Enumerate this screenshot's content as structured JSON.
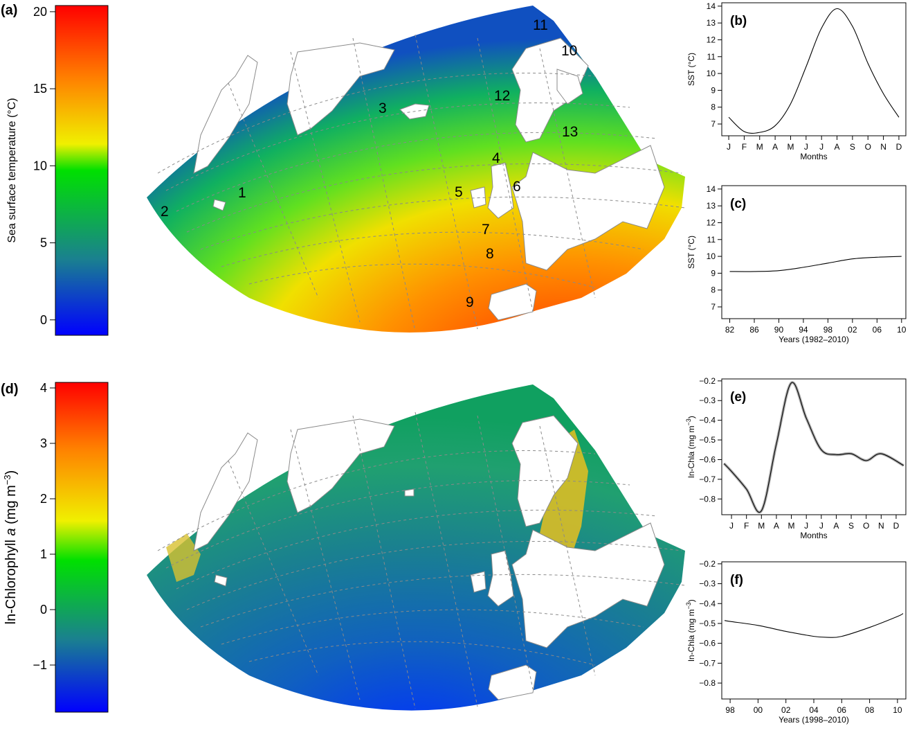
{
  "panels": {
    "a": "(a)",
    "b": "(b)",
    "c": "(c)",
    "d": "(d)",
    "e": "(e)",
    "f": "(f)"
  },
  "colors": {
    "ramp": [
      "#0000ff",
      "#1a80a0",
      "#00e000",
      "#f0f000",
      "#ff8000",
      "#ff0000"
    ],
    "land": "#ffffff",
    "coast": "#8a8a8a",
    "graticule": "#8a8a8a"
  },
  "chart_data": [
    {
      "id": "a",
      "type": "heatmap",
      "title": "",
      "colorbar_label": "Sea surface temperature (°C)",
      "colorbar_ticks": [
        "0",
        "5",
        "10",
        "15",
        "20"
      ],
      "colorbar_range": [
        -1,
        20.4
      ],
      "region_labels": [
        "1",
        "2",
        "3",
        "4",
        "5",
        "6",
        "7",
        "8",
        "9",
        "10",
        "11",
        "12",
        "13"
      ]
    },
    {
      "id": "b",
      "type": "line",
      "xlabel": "Months",
      "ylabel": "SST (°C)",
      "categories": [
        "J",
        "F",
        "M",
        "A",
        "M",
        "J",
        "J",
        "A",
        "S",
        "O",
        "N",
        "D"
      ],
      "x": [
        1,
        2,
        3,
        4,
        5,
        6,
        7,
        8,
        9,
        10,
        11,
        12
      ],
      "values": [
        7.4,
        6.55,
        6.5,
        6.9,
        8.2,
        10.4,
        12.7,
        13.85,
        12.8,
        10.6,
        8.8,
        7.4
      ],
      "ylim": [
        6.3,
        14.2
      ],
      "yticks": [
        "7",
        "8",
        "9",
        "10",
        "11",
        "12",
        "13",
        "14"
      ]
    },
    {
      "id": "c",
      "type": "line",
      "xlabel": "Years (1982–2010)",
      "ylabel": "SST (°C)",
      "categories": [
        "82",
        "86",
        "90",
        "94",
        "98",
        "02",
        "06",
        "10"
      ],
      "x": [
        1982,
        1986,
        1990,
        1994,
        1998,
        2002,
        2006,
        2010
      ],
      "values": [
        9.1,
        9.1,
        9.15,
        9.35,
        9.6,
        9.85,
        9.95,
        10.0
      ],
      "ylim": [
        6.3,
        14.2
      ],
      "yticks": [
        "7",
        "8",
        "9",
        "10",
        "11",
        "12",
        "13",
        "14"
      ]
    },
    {
      "id": "d",
      "type": "heatmap",
      "title": "",
      "colorbar_label_main": "ln-Chlorophyll ",
      "colorbar_label_italic": "a",
      "colorbar_label_unit": " (mg m",
      "colorbar_label_sup": "−3",
      "colorbar_label_end": ")",
      "colorbar_ticks": [
        "−1",
        "0",
        "1",
        "2",
        "3",
        "4"
      ],
      "colorbar_range": [
        -1.85,
        4.1
      ]
    },
    {
      "id": "e",
      "type": "line",
      "xlabel": "Months",
      "ylabel_main": "ln-Chla (mg m",
      "ylabel_sup": "−3",
      "ylabel_end": ")",
      "categories": [
        "J",
        "F",
        "M",
        "A",
        "M",
        "J",
        "J",
        "A",
        "S",
        "O",
        "N",
        "D"
      ],
      "x": [
        0.5,
        1,
        2,
        3,
        4,
        5,
        6,
        7,
        8,
        9,
        10,
        11,
        12.5
      ],
      "values": [
        -0.62,
        -0.66,
        -0.75,
        -0.86,
        -0.52,
        -0.21,
        -0.39,
        -0.55,
        -0.575,
        -0.57,
        -0.605,
        -0.57,
        -0.63
      ],
      "ylim": [
        -0.88,
        -0.19
      ],
      "yticks": [
        "−0.2",
        "−0.3",
        "−0.4",
        "−0.5",
        "−0.6",
        "−0.7",
        "−0.8"
      ]
    },
    {
      "id": "f",
      "type": "line",
      "xlabel": "Years (1998–2010)",
      "ylabel_main": "ln-Chla (mg m",
      "ylabel_sup": "−3",
      "ylabel_end": ")",
      "categories": [
        "98",
        "00",
        "02",
        "04",
        "06",
        "08",
        "10"
      ],
      "x": [
        1997.6,
        1998,
        2000,
        2002,
        2004,
        2005,
        2006,
        2008,
        2010,
        2010.4
      ],
      "values": [
        -0.485,
        -0.49,
        -0.51,
        -0.54,
        -0.565,
        -0.57,
        -0.565,
        -0.52,
        -0.465,
        -0.45
      ],
      "ylim": [
        -0.88,
        -0.19
      ],
      "yticks": [
        "−0.2",
        "−0.3",
        "−0.4",
        "−0.5",
        "−0.6",
        "−0.7",
        "−0.8"
      ]
    }
  ]
}
